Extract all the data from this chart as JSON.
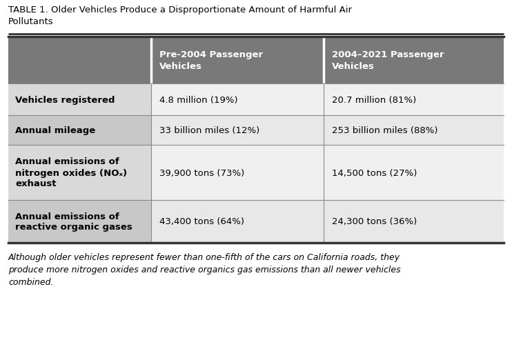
{
  "title": "TABLE 1. Older Vehicles Produce a Disproportionate Amount of Harmful Air\nPollutants",
  "col_headers": [
    "Pre-2004 Passenger\nVehicles",
    "2004–2021 Passenger\nVehicles"
  ],
  "row_labels": [
    "Vehicles registered",
    "Annual mileage",
    "Annual emissions of\nnitrogen oxides (NOₓ)\nexhaust",
    "Annual emissions of\nreactive organic gases"
  ],
  "col1_values": [
    "4.8 million (19%)",
    "33 billion miles (12%)",
    "39,900 tons (73%)",
    "43,400 tons (64%)"
  ],
  "col2_values": [
    "20.7 million (81%)",
    "253 billion miles (88%)",
    "14,500 tons (27%)",
    "24,300 tons (36%)"
  ],
  "footer": "Although older vehicles represent fewer than one-fifth of the cars on California roads, they\nproduce more nitrogen oxides and reactive organics gas emissions than all newer vehicles\ncombined.",
  "header_bg": "#797979",
  "header_text": "#ffffff",
  "label_bg_light": "#d9d9d9",
  "label_bg_dark": "#c8c8c8",
  "cell_bg_light": "#f0f0f0",
  "cell_bg_dark": "#e8e8e8",
  "border_dark": "#444444",
  "border_light": "#aaaaaa",
  "title_fontsize": 9.5,
  "header_fontsize": 9.5,
  "cell_fontsize": 9.5,
  "footer_fontsize": 9.0
}
